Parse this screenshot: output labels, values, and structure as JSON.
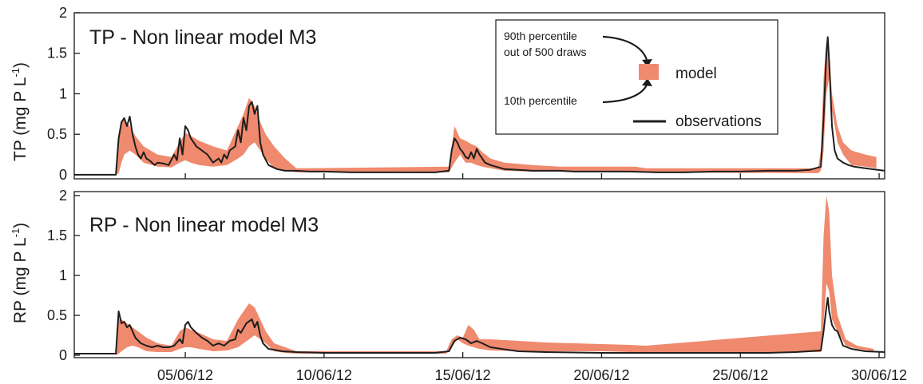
{
  "colors": {
    "band": "#f08a6e",
    "observations": "#1e1e1e",
    "axis": "#1a1a1a",
    "background": "#ffffff"
  },
  "chart_data": [
    {
      "type": "area",
      "panel": "top",
      "title": "TP - Non linear model M3",
      "ylabel_main": "TP (mg P L",
      "ylabel_sup": "-1",
      "ylabel_close": ")",
      "xlim": [
        1,
        30.2
      ],
      "ylim": [
        -0.05,
        2
      ],
      "yticks": [
        0,
        0.5,
        1,
        1.5,
        2
      ],
      "ytick_labels": [
        "0",
        "0.5",
        "1",
        "1.5",
        "2"
      ],
      "x_ticks": [
        5,
        10,
        15,
        20,
        25,
        30
      ],
      "x_tick_labels": [],
      "series": [
        {
          "name": "observations",
          "kind": "line",
          "x": [
            1,
            2.5,
            2.6,
            2.7,
            2.8,
            2.9,
            3.0,
            3.1,
            3.2,
            3.3,
            3.4,
            3.5,
            3.6,
            3.7,
            3.8,
            3.9,
            4.0,
            4.2,
            4.4,
            4.6,
            4.7,
            4.8,
            4.9,
            5.0,
            5.1,
            5.2,
            5.3,
            5.4,
            5.6,
            5.8,
            6.0,
            6.2,
            6.3,
            6.4,
            6.5,
            6.6,
            6.8,
            6.9,
            7.0,
            7.1,
            7.2,
            7.3,
            7.4,
            7.5,
            7.6,
            7.7,
            7.8,
            8.0,
            8.3,
            8.6,
            9.0,
            9.5,
            10.0,
            11.0,
            12.0,
            13.0,
            14.0,
            14.5,
            14.6,
            14.7,
            14.8,
            14.9,
            15.0,
            15.1,
            15.2,
            15.3,
            15.4,
            15.5,
            15.6,
            15.8,
            16.0,
            16.5,
            17.0,
            17.5,
            18.0,
            18.5,
            19.0,
            20.0,
            21.0,
            22.0,
            23.0,
            24.0,
            25.0,
            26.0,
            26.5,
            27.0,
            27.5,
            27.9,
            28.0,
            28.1,
            28.15,
            28.2,
            28.3,
            28.4,
            28.5,
            28.7,
            28.9,
            29.1,
            29.5,
            30.2
          ],
          "values": [
            0.0,
            0.0,
            0.45,
            0.65,
            0.7,
            0.6,
            0.72,
            0.5,
            0.35,
            0.25,
            0.2,
            0.28,
            0.2,
            0.18,
            0.15,
            0.12,
            0.15,
            0.14,
            0.12,
            0.25,
            0.18,
            0.45,
            0.25,
            0.6,
            0.55,
            0.45,
            0.4,
            0.35,
            0.3,
            0.25,
            0.15,
            0.2,
            0.15,
            0.25,
            0.2,
            0.3,
            0.35,
            0.55,
            0.4,
            0.7,
            0.55,
            0.85,
            0.9,
            0.75,
            0.85,
            0.4,
            0.25,
            0.12,
            0.07,
            0.05,
            0.05,
            0.04,
            0.04,
            0.03,
            0.03,
            0.03,
            0.03,
            0.05,
            0.3,
            0.45,
            0.4,
            0.32,
            0.28,
            0.22,
            0.2,
            0.28,
            0.2,
            0.32,
            0.25,
            0.15,
            0.12,
            0.07,
            0.06,
            0.05,
            0.05,
            0.05,
            0.04,
            0.04,
            0.04,
            0.03,
            0.03,
            0.04,
            0.04,
            0.05,
            0.05,
            0.05,
            0.06,
            0.1,
            0.7,
            1.5,
            1.7,
            1.4,
            0.6,
            0.3,
            0.2,
            0.15,
            0.12,
            0.1,
            0.08,
            0.05
          ]
        },
        {
          "name": "model",
          "kind": "band",
          "x": [
            2.5,
            2.6,
            2.7,
            2.8,
            3.0,
            3.2,
            3.5,
            4.0,
            4.5,
            4.8,
            5.0,
            5.2,
            5.5,
            6.0,
            6.5,
            6.9,
            7.1,
            7.3,
            7.5,
            7.7,
            7.9,
            8.2,
            8.6,
            9.0,
            14.5,
            14.7,
            14.9,
            15.1,
            15.3,
            15.5,
            15.7,
            16.0,
            16.5,
            17.5,
            18.5,
            19.5,
            20.5,
            21.2,
            21.6,
            27.8,
            27.9,
            28.0,
            28.1,
            28.2,
            28.3,
            28.5,
            28.7,
            29.0,
            29.5,
            29.9
          ],
          "lower": [
            0.0,
            0.02,
            0.15,
            0.25,
            0.3,
            0.25,
            0.15,
            0.1,
            0.09,
            0.15,
            0.18,
            0.15,
            0.12,
            0.1,
            0.12,
            0.2,
            0.25,
            0.35,
            0.4,
            0.3,
            0.2,
            0.08,
            0.05,
            0.03,
            0.03,
            0.15,
            0.25,
            0.15,
            0.15,
            0.12,
            0.1,
            0.08,
            0.05,
            0.04,
            0.04,
            0.04,
            0.04,
            0.03,
            0.03,
            0.02,
            0.05,
            0.3,
            1.0,
            1.2,
            0.8,
            0.4,
            0.25,
            0.12,
            0.1,
            0.08
          ],
          "upper": [
            0.1,
            0.5,
            0.65,
            0.68,
            0.6,
            0.48,
            0.35,
            0.25,
            0.22,
            0.4,
            0.52,
            0.48,
            0.42,
            0.35,
            0.3,
            0.6,
            0.75,
            0.95,
            0.85,
            0.65,
            0.5,
            0.35,
            0.2,
            0.08,
            0.1,
            0.6,
            0.45,
            0.42,
            0.38,
            0.35,
            0.28,
            0.2,
            0.15,
            0.12,
            0.1,
            0.1,
            0.1,
            0.1,
            0.08,
            0.08,
            0.3,
            1.2,
            1.65,
            1.5,
            1.0,
            0.6,
            0.4,
            0.3,
            0.25,
            0.22
          ]
        }
      ],
      "legend": {
        "label_90": "90th percentile",
        "label_draws": "out of 500 draws",
        "label_10": "10th percentile",
        "label_model": "model",
        "label_obs": "observations",
        "placement": "top-right"
      }
    },
    {
      "type": "area",
      "panel": "bottom",
      "title": "RP - Non linear model M3",
      "ylabel_main": "RP (mg P L",
      "ylabel_sup": "-1",
      "ylabel_close": ")",
      "xlim": [
        1,
        30.2
      ],
      "ylim": [
        -0.03,
        2.05
      ],
      "yticks": [
        0,
        0.5,
        1,
        1.5,
        2
      ],
      "ytick_labels": [
        "0",
        "0.5",
        "1",
        "1.5",
        "2"
      ],
      "x_ticks": [
        5,
        10,
        15,
        20,
        25,
        30
      ],
      "x_tick_labels": [
        "05/06/12",
        "10/06/12",
        "15/06/12",
        "20/06/12",
        "25/06/12",
        "30/06/12"
      ],
      "series": [
        {
          "name": "observations",
          "kind": "line",
          "x": [
            1,
            2.5,
            2.6,
            2.7,
            2.8,
            2.9,
            3.0,
            3.1,
            3.2,
            3.4,
            3.6,
            3.8,
            4.0,
            4.2,
            4.4,
            4.6,
            4.8,
            4.9,
            5.0,
            5.1,
            5.2,
            5.4,
            5.6,
            5.8,
            6.0,
            6.2,
            6.4,
            6.6,
            6.8,
            6.9,
            7.0,
            7.2,
            7.4,
            7.5,
            7.6,
            7.7,
            7.8,
            8.0,
            8.5,
            9.0,
            10.0,
            12.0,
            14.0,
            14.5,
            14.7,
            14.9,
            15.1,
            15.3,
            15.5,
            15.7,
            16.0,
            17.0,
            18.0,
            20.0,
            22.0,
            24.0,
            26.0,
            27.0,
            27.9,
            28.0,
            28.1,
            28.15,
            28.2,
            28.3,
            28.4,
            28.5,
            28.7,
            29.0,
            29.5,
            30.2
          ],
          "values": [
            0.02,
            0.02,
            0.55,
            0.4,
            0.42,
            0.35,
            0.38,
            0.3,
            0.22,
            0.15,
            0.12,
            0.1,
            0.12,
            0.1,
            0.1,
            0.12,
            0.2,
            0.15,
            0.38,
            0.42,
            0.35,
            0.28,
            0.22,
            0.18,
            0.12,
            0.15,
            0.12,
            0.18,
            0.2,
            0.32,
            0.28,
            0.4,
            0.45,
            0.35,
            0.42,
            0.25,
            0.15,
            0.08,
            0.05,
            0.04,
            0.03,
            0.03,
            0.03,
            0.05,
            0.18,
            0.22,
            0.2,
            0.15,
            0.18,
            0.15,
            0.1,
            0.05,
            0.04,
            0.03,
            0.03,
            0.03,
            0.03,
            0.04,
            0.06,
            0.3,
            0.6,
            0.72,
            0.55,
            0.38,
            0.32,
            0.3,
            0.12,
            0.08,
            0.05,
            0.04
          ]
        },
        {
          "name": "model",
          "kind": "band",
          "x": [
            2.5,
            2.6,
            2.7,
            2.9,
            3.1,
            3.3,
            3.6,
            4.0,
            4.5,
            4.8,
            5.0,
            5.2,
            5.5,
            6.0,
            6.5,
            6.9,
            7.1,
            7.3,
            7.5,
            7.7,
            7.9,
            8.2,
            8.6,
            9.0,
            14.4,
            14.6,
            14.8,
            15.0,
            15.2,
            15.4,
            15.6,
            16.0,
            17.0,
            18.0,
            19.0,
            20.0,
            21.0,
            21.6,
            27.9,
            28.0,
            28.1,
            28.2,
            28.3,
            28.5,
            28.8,
            29.2,
            29.8
          ],
          "lower": [
            0.0,
            0.02,
            0.05,
            0.1,
            0.12,
            0.1,
            0.05,
            0.04,
            0.04,
            0.08,
            0.1,
            0.1,
            0.08,
            0.05,
            0.06,
            0.1,
            0.15,
            0.2,
            0.25,
            0.2,
            0.15,
            0.05,
            0.03,
            0.02,
            0.02,
            0.1,
            0.2,
            0.15,
            0.12,
            0.1,
            0.08,
            0.06,
            0.05,
            0.05,
            0.05,
            0.05,
            0.04,
            0.03,
            0.04,
            0.4,
            0.9,
            0.8,
            0.45,
            0.3,
            0.12,
            0.08,
            0.05
          ],
          "upper": [
            0.1,
            0.45,
            0.45,
            0.4,
            0.35,
            0.3,
            0.22,
            0.15,
            0.12,
            0.3,
            0.35,
            0.32,
            0.28,
            0.2,
            0.18,
            0.45,
            0.55,
            0.65,
            0.6,
            0.45,
            0.3,
            0.15,
            0.1,
            0.05,
            0.05,
            0.2,
            0.25,
            0.22,
            0.38,
            0.32,
            0.2,
            0.2,
            0.18,
            0.16,
            0.15,
            0.14,
            0.13,
            0.12,
            0.3,
            1.5,
            2.0,
            1.8,
            1.0,
            0.5,
            0.2,
            0.12,
            0.08
          ]
        }
      ]
    }
  ]
}
